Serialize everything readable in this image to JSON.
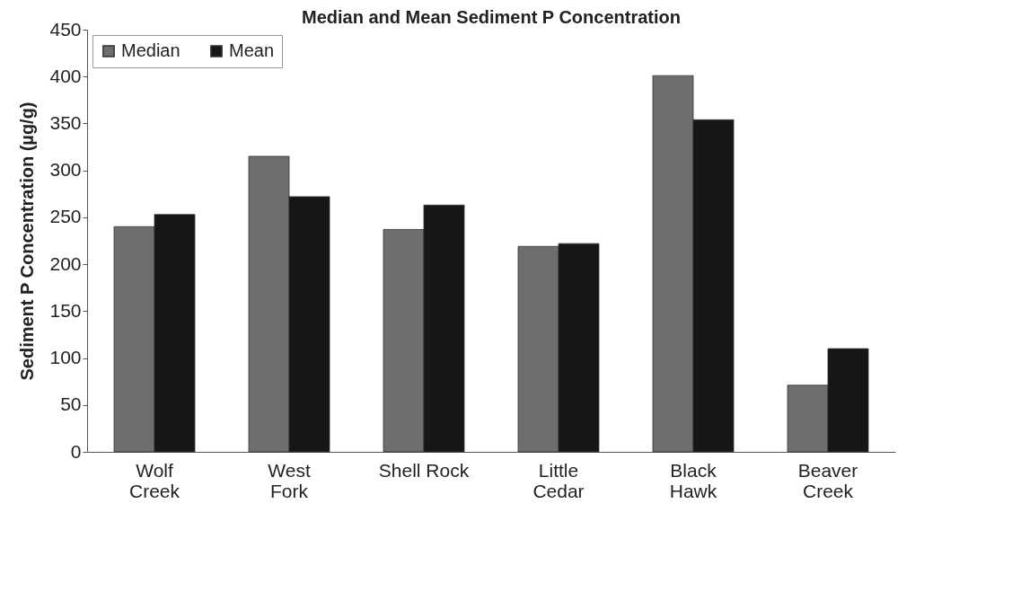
{
  "chart_data": {
    "type": "bar",
    "title": "Median and Mean Sediment P Concentration",
    "ylabel": "Sediment P Concentration (µg/g)",
    "categories": [
      "Wolf\nCreek",
      "West\nFork",
      "Shell Rock",
      "Little\nCedar",
      "Black\nHawk",
      "Beaver\nCreek"
    ],
    "series": [
      {
        "name": "Median",
        "color": "#6e6e6e",
        "values": [
          240,
          315,
          237,
          219,
          401,
          71
        ]
      },
      {
        "name": "Mean",
        "color": "#161616",
        "values": [
          253,
          272,
          263,
          222,
          354,
          110
        ]
      }
    ],
    "ylim": [
      0,
      450
    ],
    "yticks": [
      0,
      50,
      100,
      150,
      200,
      250,
      300,
      350,
      400,
      450
    ],
    "grid": false,
    "legend": "top left"
  }
}
